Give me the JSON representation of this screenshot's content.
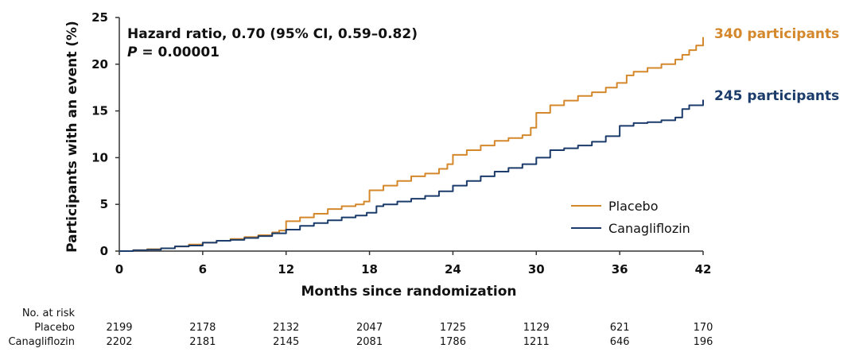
{
  "chart_data": {
    "type": "line",
    "xlabel": "Months since randomization",
    "ylabel": "Participants with an event (%)",
    "xlim": [
      0,
      42
    ],
    "ylim": [
      0,
      25
    ],
    "x_ticks": [
      "0",
      "6",
      "12",
      "18",
      "24",
      "30",
      "36",
      "42"
    ],
    "y_ticks": [
      "0",
      "5",
      "10",
      "15",
      "20",
      "25"
    ],
    "annotation": {
      "line1": "Hazard ratio, 0.70 (95% CI, 0.59–0.82)",
      "line2_italic": "P",
      "line2_rest": " = 0.00001"
    },
    "legend_position": "bottom-right",
    "series": [
      {
        "name": "Placebo",
        "color": "#D4882B",
        "end_label": "340 participants",
        "x": [
          0,
          1,
          2,
          3,
          4,
          5,
          6,
          7,
          8,
          9,
          10,
          11,
          11.5,
          12,
          13,
          14,
          15,
          16,
          17,
          17.6,
          18,
          19,
          20,
          21,
          22,
          23,
          23.6,
          24,
          25,
          26,
          27,
          28,
          29,
          29.6,
          30,
          31,
          32,
          33,
          34,
          35,
          35.8,
          36.5,
          37,
          38,
          39,
          40,
          40.5,
          41,
          41.5,
          42
        ],
        "y": [
          0,
          0.1,
          0.2,
          0.3,
          0.5,
          0.7,
          0.9,
          1.1,
          1.3,
          1.5,
          1.7,
          2.0,
          2.2,
          3.2,
          3.6,
          4.0,
          4.5,
          4.8,
          5.0,
          5.3,
          6.5,
          7.0,
          7.5,
          8.0,
          8.3,
          8.8,
          9.3,
          10.3,
          10.8,
          11.3,
          11.8,
          12.1,
          12.4,
          13.2,
          14.8,
          15.6,
          16.1,
          16.6,
          17.0,
          17.5,
          18.0,
          18.8,
          19.2,
          19.6,
          20.0,
          20.5,
          21.0,
          21.5,
          22.0,
          22.9
        ]
      },
      {
        "name": "Canagliflozin",
        "color": "#1B3C6B",
        "end_label": "245 participants",
        "x": [
          0,
          1,
          2,
          3,
          4,
          5,
          6,
          7,
          8,
          9,
          10,
          11,
          12,
          13,
          14,
          15,
          16,
          17,
          17.8,
          18.5,
          19,
          20,
          21,
          22,
          23,
          24,
          25,
          26,
          27,
          28,
          29,
          30,
          31,
          32,
          33,
          34,
          35,
          36,
          37,
          38,
          39,
          40,
          40.5,
          41,
          42
        ],
        "y": [
          0,
          0.1,
          0.15,
          0.3,
          0.5,
          0.6,
          0.9,
          1.1,
          1.2,
          1.4,
          1.6,
          1.9,
          2.3,
          2.7,
          3.0,
          3.3,
          3.6,
          3.8,
          4.1,
          4.8,
          5.0,
          5.3,
          5.6,
          5.9,
          6.4,
          7.0,
          7.5,
          8.0,
          8.5,
          8.9,
          9.3,
          10.0,
          10.8,
          11.0,
          11.3,
          11.7,
          12.3,
          13.4,
          13.7,
          13.8,
          14.0,
          14.3,
          15.2,
          15.6,
          16.2
        ]
      }
    ]
  },
  "risk_table": {
    "title": "No. at risk",
    "rows": [
      {
        "label": "Placebo",
        "values": [
          "2199",
          "2178",
          "2132",
          "2047",
          "1725",
          "1129",
          "621",
          "170"
        ]
      },
      {
        "label": "Canagliflozin",
        "values": [
          "2202",
          "2181",
          "2145",
          "2081",
          "1786",
          "1211",
          "646",
          "196"
        ]
      }
    ]
  }
}
